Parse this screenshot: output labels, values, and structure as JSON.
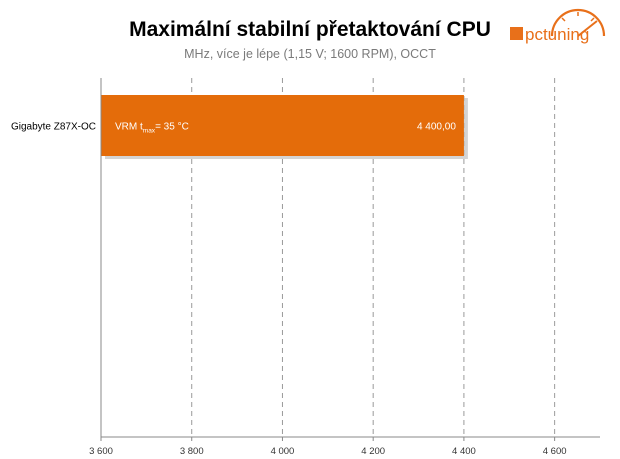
{
  "header": {
    "title": "Maximální stabilní přetaktování CPU",
    "subtitle": "MHz, více je lépe (1,15 V; 1600 RPM), OCCT"
  },
  "logo": {
    "text": "pctuning",
    "icon": "gauge-icon",
    "color": "#e8701a"
  },
  "chart_data": {
    "type": "bar",
    "orientation": "horizontal",
    "title": "Maximální stabilní přetaktování CPU",
    "subtitle": "MHz, více je lépe (1,15 V; 1600 RPM), OCCT",
    "categories": [
      "Gigabyte Z87X-OC"
    ],
    "values": [
      4400
    ],
    "value_labels": [
      "4 400,00"
    ],
    "bar_annotation": {
      "prefix": "VRM t",
      "subscript": "max",
      "suffix": "= 35 °C"
    },
    "xlim": [
      3600,
      4700
    ],
    "xticks": [
      3600,
      3800,
      4000,
      4200,
      4400,
      4600
    ],
    "xtick_labels": [
      "3 600",
      "3 800",
      "4 000",
      "4 200",
      "4 400",
      "4 600"
    ],
    "grid": "vertical-dashed",
    "bar_color": "#e46c0a"
  }
}
